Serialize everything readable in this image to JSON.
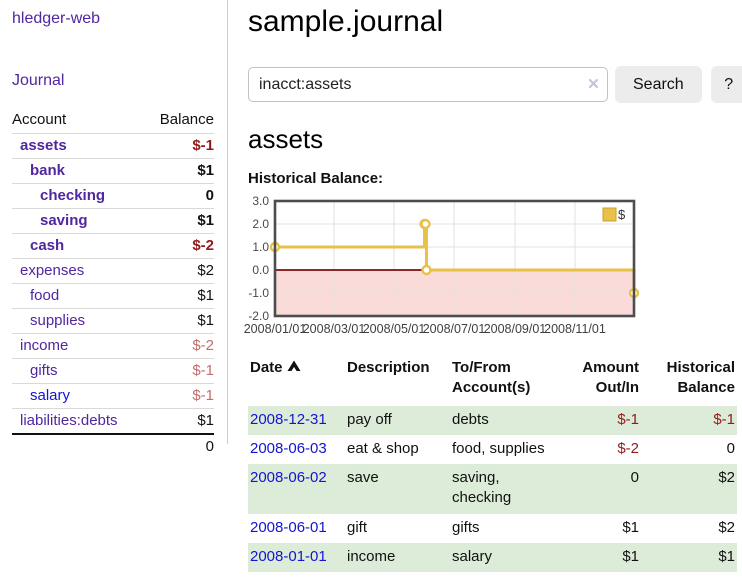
{
  "colors": {
    "purple": "#5126a0",
    "blue": "#1414d2",
    "red": "#941a1a",
    "rose": "#c46b6b",
    "green": "#dcecd8",
    "chart_gold": "#e9c048",
    "chart_zero_line": "#7d0d0d",
    "chart_negative_fill": "#fbdada"
  },
  "sidebar": {
    "app_title": "hledger-web",
    "journal_link": "Journal",
    "accounts_table": {
      "account_header": "Account",
      "balance_header": "Balance",
      "rows": [
        {
          "name": "assets",
          "balance": "$-1",
          "depth": 1,
          "bold": true,
          "link_color": "purple",
          "balance_style": "negative"
        },
        {
          "name": "bank",
          "balance": "$1",
          "depth": 2,
          "bold": true,
          "link_color": "purple",
          "balance_style": "normal"
        },
        {
          "name": "checking",
          "balance": "0",
          "depth": 3,
          "bold": true,
          "link_color": "purple",
          "balance_style": "normal"
        },
        {
          "name": "saving",
          "balance": "$1",
          "depth": 3,
          "bold": true,
          "link_color": "purple",
          "balance_style": "normal"
        },
        {
          "name": "cash",
          "balance": "$-2",
          "depth": 2,
          "bold": true,
          "link_color": "purple",
          "balance_style": "negative"
        },
        {
          "name": "expenses",
          "balance": "$2",
          "depth": 1,
          "bold": false,
          "link_color": "purple",
          "balance_style": "normal"
        },
        {
          "name": "food",
          "balance": "$1",
          "depth": 2,
          "bold": false,
          "link_color": "purple",
          "balance_style": "normal"
        },
        {
          "name": "supplies",
          "balance": "$1",
          "depth": 2,
          "bold": false,
          "link_color": "purple",
          "balance_style": "normal"
        },
        {
          "name": "income",
          "balance": "$-2",
          "depth": 1,
          "bold": false,
          "link_color": "purple",
          "balance_style": "negative-muted"
        },
        {
          "name": "gifts",
          "balance": "$-1",
          "depth": 2,
          "bold": false,
          "link_color": "purple",
          "balance_style": "negative-muted"
        },
        {
          "name": "salary",
          "balance": "$-1",
          "depth": 2,
          "bold": false,
          "link_color": "blue",
          "balance_style": "negative-muted"
        },
        {
          "name": "liabilities:debts",
          "balance": "$1",
          "depth": 1,
          "bold": false,
          "link_color": "purple",
          "balance_style": "normal"
        }
      ],
      "total": "0"
    }
  },
  "main": {
    "title": "sample.journal",
    "search": {
      "value": "inacct:assets",
      "clear_icon": "×",
      "button_label": "Search",
      "help_label": "?"
    },
    "account_heading": "assets",
    "section_label": "Historical Balance:"
  },
  "chart_data": {
    "type": "line",
    "step": true,
    "title": "Historical Balance",
    "xlabel": "",
    "ylabel": "",
    "xlim": [
      "2008-01-01",
      "2008-12-31"
    ],
    "ylim": [
      -2,
      3
    ],
    "grid": true,
    "legend_position": "top-right",
    "series": [
      {
        "name": "$",
        "color": "#e9c048",
        "points": [
          [
            "2008-01-01",
            1
          ],
          [
            "2008-06-01",
            2
          ],
          [
            "2008-06-02",
            2
          ],
          [
            "2008-06-03",
            0
          ],
          [
            "2008-12-31",
            -1
          ]
        ]
      }
    ],
    "xticks": [
      {
        "at": "2008-01-01",
        "label": "2008/01/01"
      },
      {
        "at": "2008-03-01",
        "label": "2008/03/01"
      },
      {
        "at": "2008-05-01",
        "label": "2008/05/01"
      },
      {
        "at": "2008-07-01",
        "label": "2008/07/01"
      },
      {
        "at": "2008-09-01",
        "label": "2008/09/01"
      },
      {
        "at": "2008-11-01",
        "label": "2008/11/01"
      }
    ],
    "yticks": [
      {
        "at": 3,
        "label": "3.0"
      },
      {
        "at": 2,
        "label": "2.0"
      },
      {
        "at": 1,
        "label": "1.0"
      },
      {
        "at": 0,
        "label": "0.0"
      },
      {
        "at": -1,
        "label": "-1.0"
      },
      {
        "at": -2,
        "label": "-2.0"
      }
    ],
    "zero_line_color": "#7d0d0d",
    "negative_region_color": "#fbdada"
  },
  "transactions": {
    "headers": {
      "date": "Date",
      "description": "Description",
      "accounts": "To/From Account(s)",
      "amount": "Amount Out/In",
      "balance": "Historical Balance"
    },
    "rows": [
      {
        "date": "2008-12-31",
        "description": "pay off",
        "accounts": "debts",
        "amount": "$-1",
        "amount_negative": true,
        "balance": "$-1",
        "balance_negative": true
      },
      {
        "date": "2008-06-03",
        "description": "eat & shop",
        "accounts": "food, supplies",
        "amount": "$-2",
        "amount_negative": true,
        "balance": "0",
        "balance_negative": false
      },
      {
        "date": "2008-06-02",
        "description": "save",
        "accounts": "saving, checking",
        "amount": "0",
        "amount_negative": false,
        "balance": "$2",
        "balance_negative": false
      },
      {
        "date": "2008-06-01",
        "description": "gift",
        "accounts": "gifts",
        "amount": "$1",
        "amount_negative": false,
        "balance": "$2",
        "balance_negative": false
      },
      {
        "date": "2008-01-01",
        "description": "income",
        "accounts": "salary",
        "amount": "$1",
        "amount_negative": false,
        "balance": "$1",
        "balance_negative": false
      }
    ]
  }
}
